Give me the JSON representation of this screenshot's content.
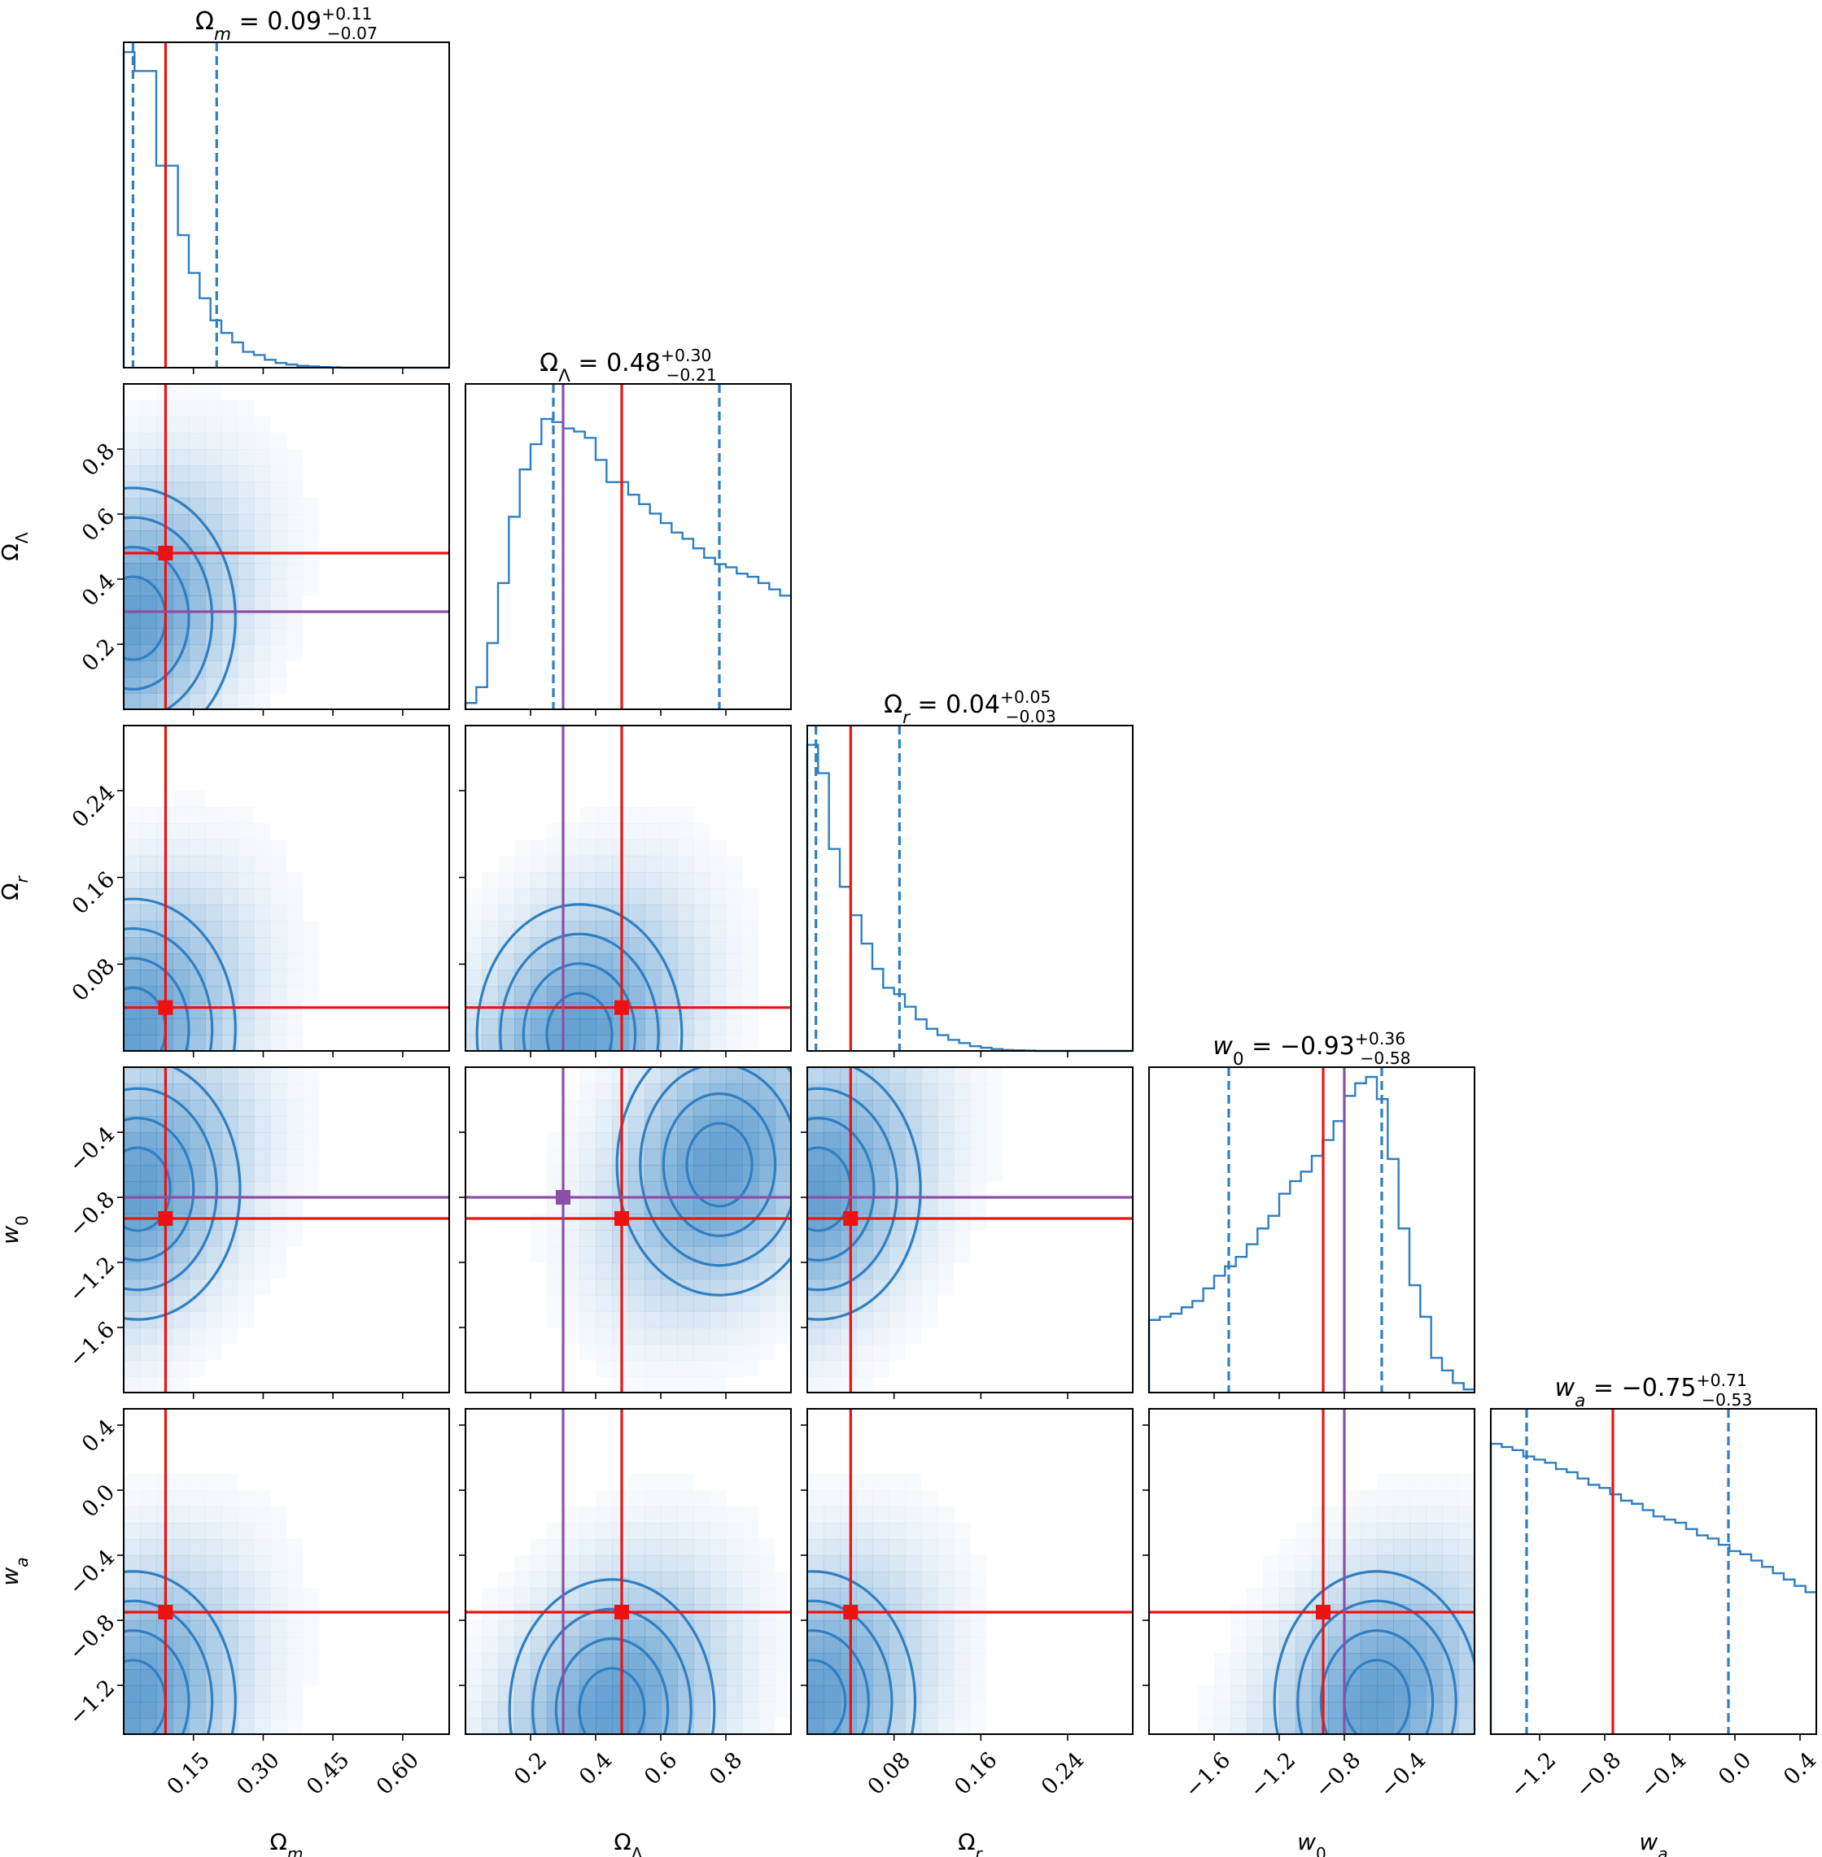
{
  "chart_data": {
    "type": "corner",
    "parameters": [
      {
        "key": "Om",
        "label_base": "Ω",
        "label_sub": "m",
        "range": [
          0.0,
          0.7
        ],
        "ticks": [
          0.15,
          0.3,
          0.45,
          0.6
        ],
        "tick_labels": [
          "0.15",
          "0.30",
          "0.45",
          "0.60"
        ],
        "median": 0.09,
        "plus": "+0.11",
        "minus": "−0.07",
        "median_text": "0.09",
        "q16": 0.02,
        "q84": 0.2,
        "hist": [
          1.0,
          0.94,
          0.94,
          0.64,
          0.64,
          0.42,
          0.3,
          0.22,
          0.15,
          0.11,
          0.08,
          0.05,
          0.04,
          0.025,
          0.015,
          0.01,
          0.006,
          0.004,
          0.002,
          0.001,
          0,
          0,
          0,
          0,
          0,
          0,
          0,
          0,
          0,
          0
        ]
      },
      {
        "key": "OL",
        "label_base": "Ω",
        "label_sub": "Λ",
        "range": [
          0.0,
          1.0
        ],
        "ticks": [
          0.2,
          0.4,
          0.6,
          0.8
        ],
        "tick_labels": [
          "0.2",
          "0.4",
          "0.6",
          "0.8"
        ],
        "median": 0.48,
        "plus": "+0.30",
        "minus": "−0.21",
        "median_text": "0.48",
        "q16": 0.27,
        "q84": 0.78,
        "hist": [
          0.02,
          0.07,
          0.21,
          0.4,
          0.61,
          0.76,
          0.84,
          0.92,
          0.91,
          0.89,
          0.88,
          0.86,
          0.79,
          0.72,
          0.72,
          0.68,
          0.65,
          0.62,
          0.59,
          0.56,
          0.54,
          0.51,
          0.48,
          0.46,
          0.45,
          0.43,
          0.42,
          0.4,
          0.38,
          0.36
        ]
      },
      {
        "key": "Or",
        "label_base": "Ω",
        "label_sub": "r",
        "range": [
          0.0,
          0.3
        ],
        "ticks": [
          0.08,
          0.16,
          0.24
        ],
        "tick_labels": [
          "0.08",
          "0.16",
          "0.24"
        ],
        "median": 0.04,
        "plus": "+0.05",
        "minus": "−0.03",
        "median_text": "0.04",
        "q16": 0.008,
        "q84": 0.085,
        "hist": [
          0.97,
          0.88,
          0.64,
          0.52,
          0.43,
          0.34,
          0.26,
          0.2,
          0.18,
          0.14,
          0.1,
          0.07,
          0.05,
          0.035,
          0.025,
          0.015,
          0.01,
          0.006,
          0.003,
          0.002,
          0.001,
          0,
          0,
          0,
          0,
          0,
          0,
          0,
          0,
          0
        ]
      },
      {
        "key": "w0",
        "label_base": "w",
        "label_sub": "0",
        "range": [
          -2.0,
          0.0
        ],
        "ticks": [
          -1.6,
          -1.2,
          -0.8,
          -0.4
        ],
        "tick_labels": [
          "−1.6",
          "−1.2",
          "−0.8",
          "−0.4"
        ],
        "median": -0.93,
        "plus": "+0.36",
        "minus": "−0.58",
        "median_text": "−0.93",
        "q16": -1.51,
        "q84": -0.57,
        "hist": [
          0.23,
          0.24,
          0.25,
          0.27,
          0.29,
          0.33,
          0.37,
          0.4,
          0.43,
          0.47,
          0.52,
          0.56,
          0.63,
          0.67,
          0.7,
          0.75,
          0.8,
          0.86,
          0.94,
          0.98,
          1.0,
          0.93,
          0.74,
          0.52,
          0.34,
          0.24,
          0.11,
          0.07,
          0.03,
          0.01
        ]
      },
      {
        "key": "wa",
        "label_base": "w",
        "label_sub": "a",
        "range": [
          -1.5,
          0.5
        ],
        "ticks": [
          -1.2,
          -0.8,
          -0.4,
          0.0,
          0.4
        ],
        "tick_labels": [
          "−1.2",
          "−0.8",
          "−0.4",
          "0.0",
          "0.4"
        ],
        "median": -0.75,
        "plus": "+0.71",
        "minus": "−0.53",
        "median_text": "−0.75",
        "q16": -1.28,
        "q84": -0.04,
        "hist": [
          0.92,
          0.91,
          0.9,
          0.88,
          0.87,
          0.86,
          0.84,
          0.83,
          0.81,
          0.79,
          0.78,
          0.76,
          0.74,
          0.73,
          0.71,
          0.69,
          0.68,
          0.67,
          0.65,
          0.63,
          0.62,
          0.6,
          0.58,
          0.57,
          0.55,
          0.53,
          0.51,
          0.49,
          0.47,
          0.45
        ]
      }
    ],
    "truth": {
      "Om": 0.09,
      "OL": 0.48,
      "Or": 0.04,
      "w0": -0.93,
      "wa": -0.75
    },
    "alt": {
      "OL": 0.3,
      "w0": -0.8
    },
    "pair_peaks": {
      "Om": {
        "OL": [
          0.02,
          0.28
        ],
        "Or": [
          0.02,
          0.02
        ],
        "w0": [
          0.03,
          -0.75
        ],
        "wa": [
          0.02,
          -1.3
        ]
      },
      "OL": {
        "Or": [
          0.35,
          0.015
        ],
        "w0": [
          0.78,
          -0.6
        ],
        "wa": [
          0.45,
          -1.35
        ]
      },
      "Or": {
        "w0": [
          0.01,
          -0.75
        ],
        "wa": [
          0.005,
          -1.3
        ]
      },
      "w0": {
        "wa": [
          -0.6,
          -1.3
        ]
      }
    },
    "colors": {
      "series": "#2f7fc1",
      "truth": "#ee1111",
      "alt": "#8c4fa6"
    }
  }
}
